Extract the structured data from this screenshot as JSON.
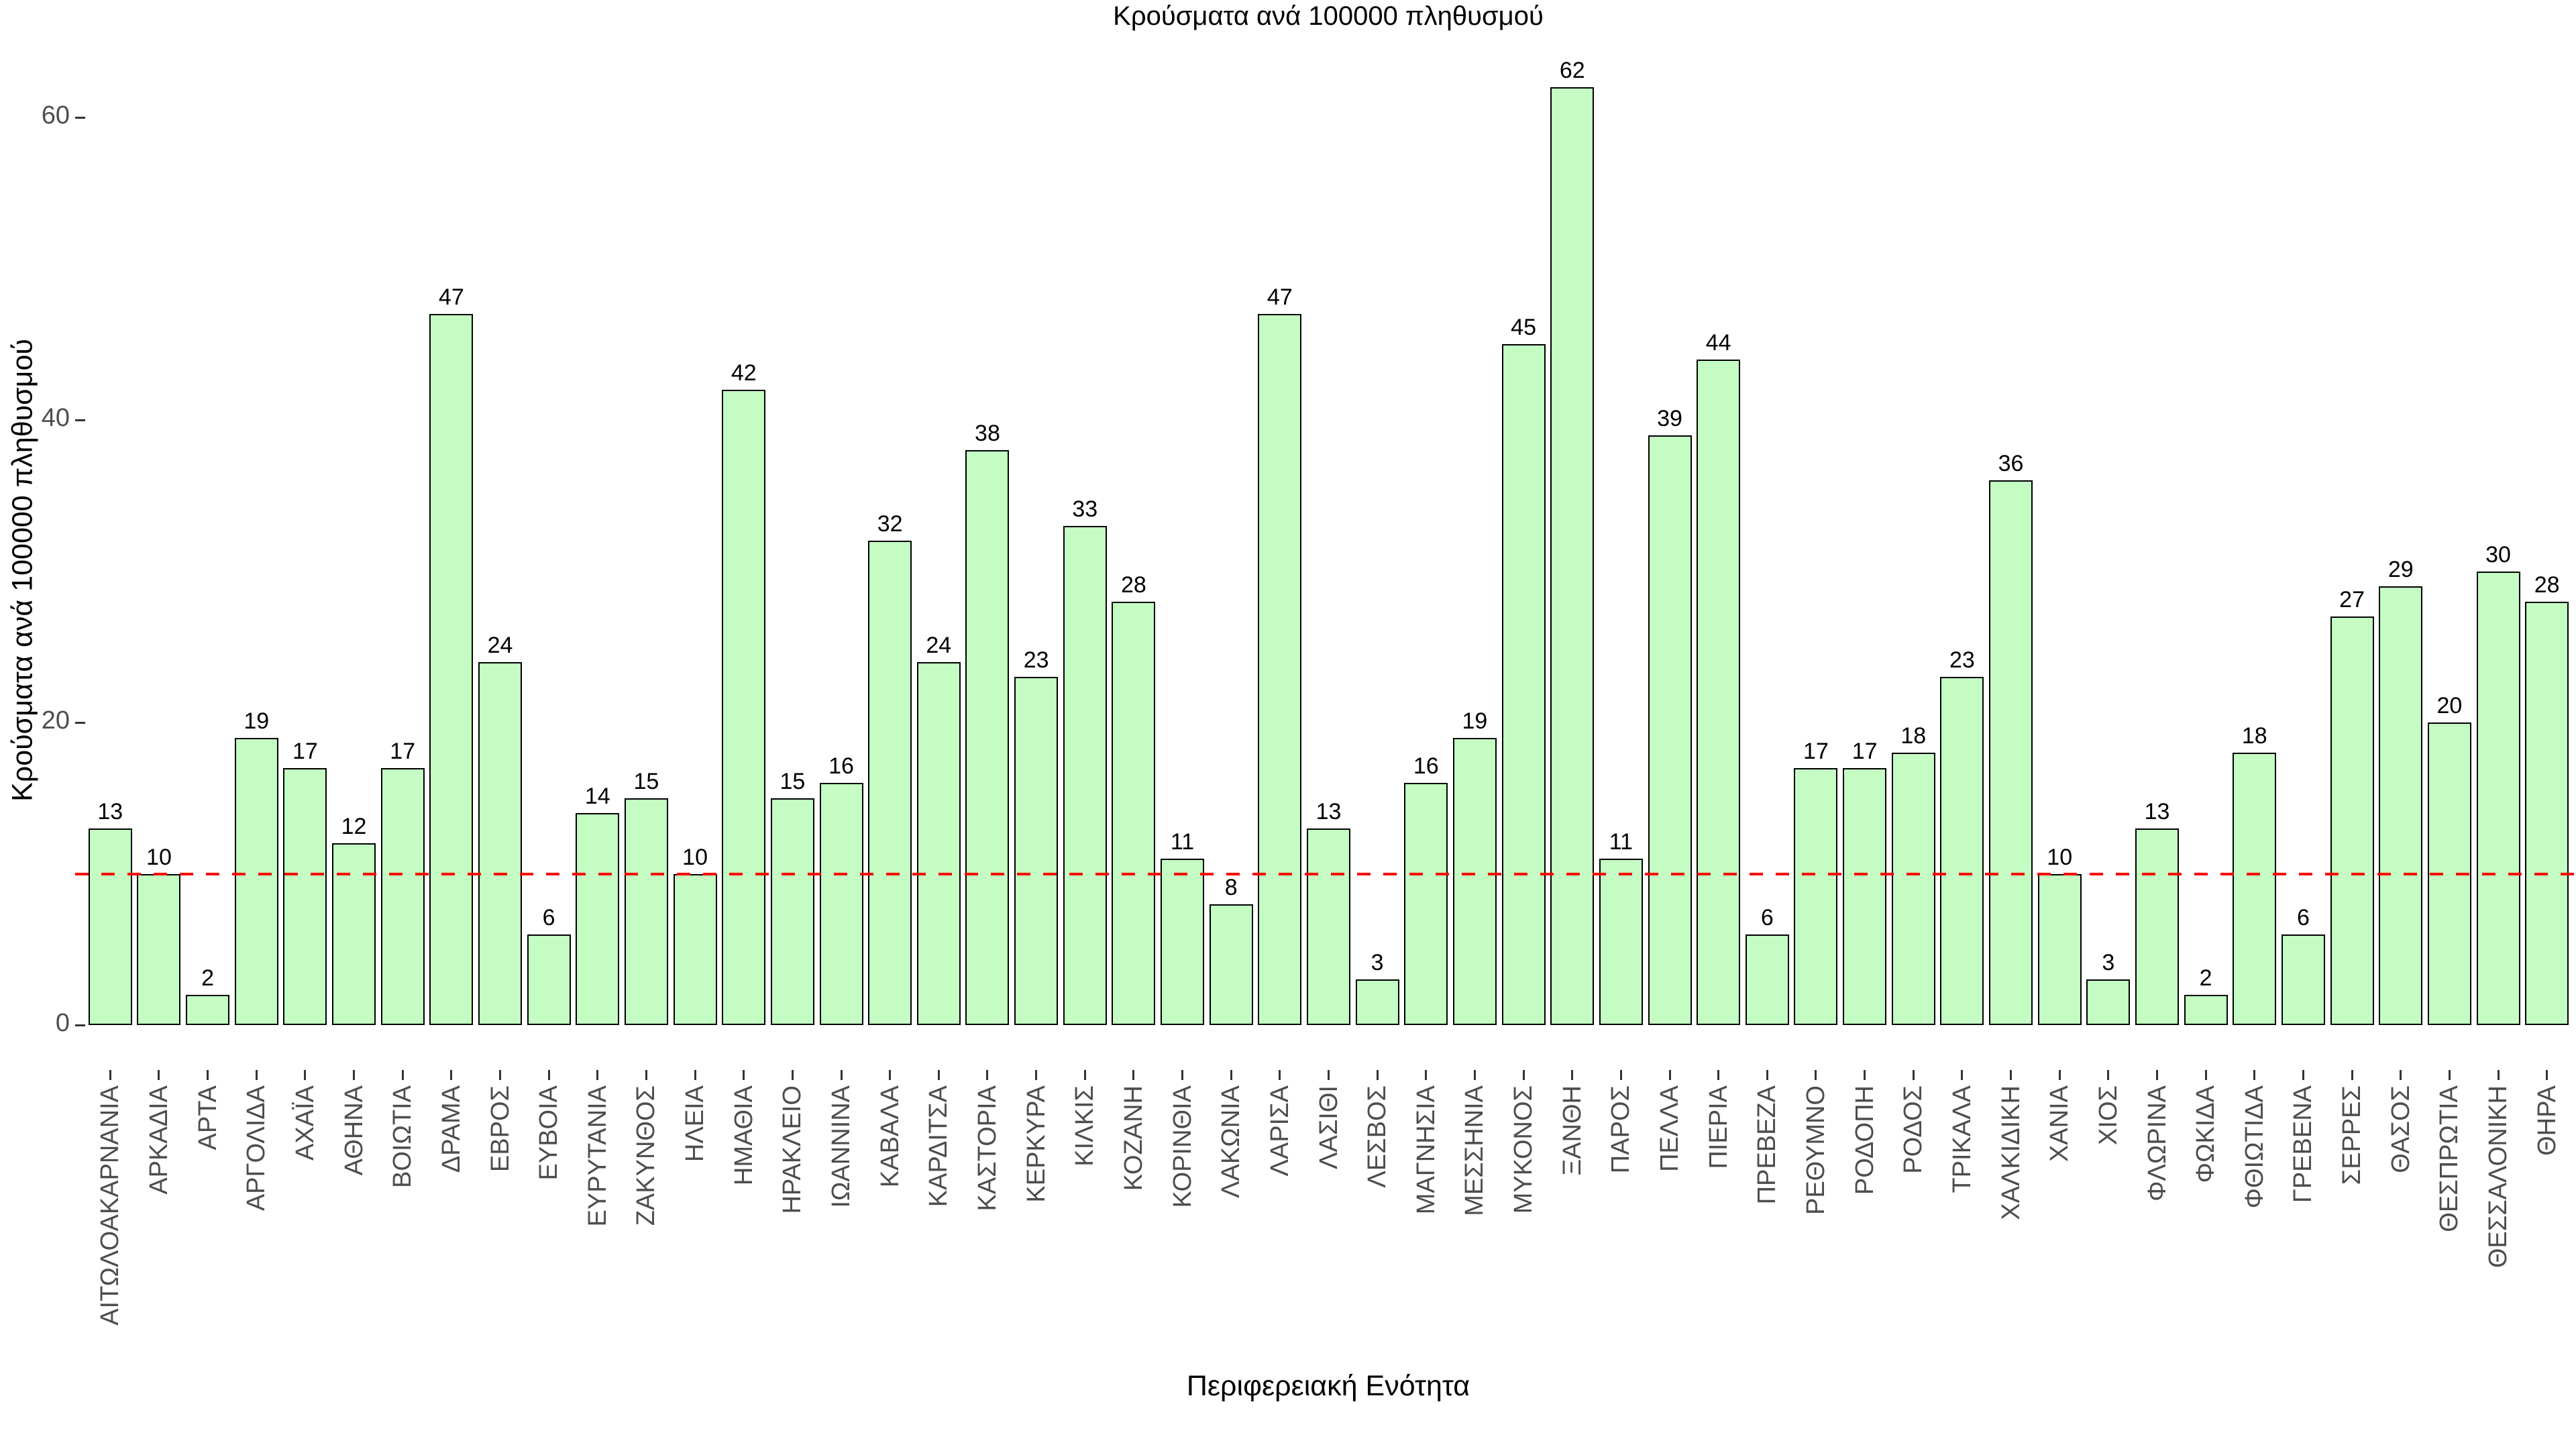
{
  "page": {
    "background": "#ffffff"
  },
  "chart_data": {
    "type": "bar",
    "title": "Κρούσματα ανά 100000 πληθυσμού",
    "xlabel": "Περιφερειακή Ενότητα",
    "ylabel": "Κρούσματα ανά 100000 πληθυσμού",
    "categories": [
      "ΑΙΤΩΛΟΑΚΑΡΝΑΝΙΑ",
      "ΑΡΚΑΔΙΑ",
      "ΑΡΤΑ",
      "ΑΡΓΟΛΙΔΑ",
      "ΑΧΑΪΑ",
      "ΑΘΗΝΑ",
      "ΒΟΙΩΤΙΑ",
      "ΔΡΑΜΑ",
      "ΕΒΡΟΣ",
      "ΕΥΒΟΙΑ",
      "ΕΥΡΥΤΑΝΙΑ",
      "ΖΑΚΥΝΘΟΣ",
      "ΗΛΕΙΑ",
      "ΗΜΑΘΙΑ",
      "ΗΡΑΚΛΕΙΟ",
      "ΙΩΑΝΝΙΝΑ",
      "ΚΑΒΑΛΑ",
      "ΚΑΡΔΙΤΣΑ",
      "ΚΑΣΤΟΡΙΑ",
      "ΚΕΡΚΥΡΑ",
      "ΚΙΛΚΙΣ",
      "ΚΟΖΑΝΗ",
      "ΚΟΡΙΝΘΙΑ",
      "ΛΑΚΩΝΙΑ",
      "ΛΑΡΙΣΑ",
      "ΛΑΣΙΘΙ",
      "ΛΕΣΒΟΣ",
      "ΜΑΓΝΗΣΙΑ",
      "ΜΕΣΣΗΝΙΑ",
      "ΜΥΚΟΝΟΣ",
      "ΞΑΝΘΗ",
      "ΠΑΡΟΣ",
      "ΠΕΛΛΑ",
      "ΠΙΕΡΙΑ",
      "ΠΡΕΒΕΖΑ",
      "ΡΕΘΥΜΝΟ",
      "ΡΟΔΟΠΗ",
      "ΡΟΔΟΣ",
      "ΤΡΙΚΑΛΑ",
      "ΧΑΛΚΙΔΙΚΗ",
      "ΧΑΝΙΑ",
      "ΧΙΟΣ",
      "ΦΛΩΡΙΝΑ",
      "ΦΩΚΙΔΑ",
      "ΦΘΙΩΤΙΔΑ",
      "ΓΡΕΒΕΝΑ",
      "ΣΕΡΡΕΣ",
      "ΘΑΣΟΣ",
      "ΘΕΣΠΡΩΤΙΑ",
      "ΘΕΣΣΑΛΟΝΙΚΗ",
      "ΘΗΡΑ"
    ],
    "values": [
      13,
      10,
      2,
      19,
      17,
      12,
      17,
      47,
      24,
      6,
      14,
      15,
      10,
      42,
      15,
      16,
      32,
      24,
      38,
      23,
      33,
      28,
      11,
      8,
      47,
      13,
      3,
      16,
      19,
      45,
      62,
      11,
      39,
      44,
      6,
      17,
      17,
      18,
      23,
      36,
      10,
      3,
      13,
      2,
      18,
      6,
      27,
      29,
      20,
      30,
      28
    ],
    "yticks": [
      0,
      20,
      40,
      60
    ],
    "ylim": [
      -3.1,
      65.1
    ],
    "grid": false,
    "legend": false,
    "value_labels_shown": true,
    "reference_line": {
      "y": 10,
      "color": "#fa0000",
      "style": "dashed"
    },
    "colors": {
      "bar_fill": "#c4fcc4",
      "bar_border": "#000000",
      "tick_label": "#4d4d4d",
      "title": "#000000"
    }
  }
}
